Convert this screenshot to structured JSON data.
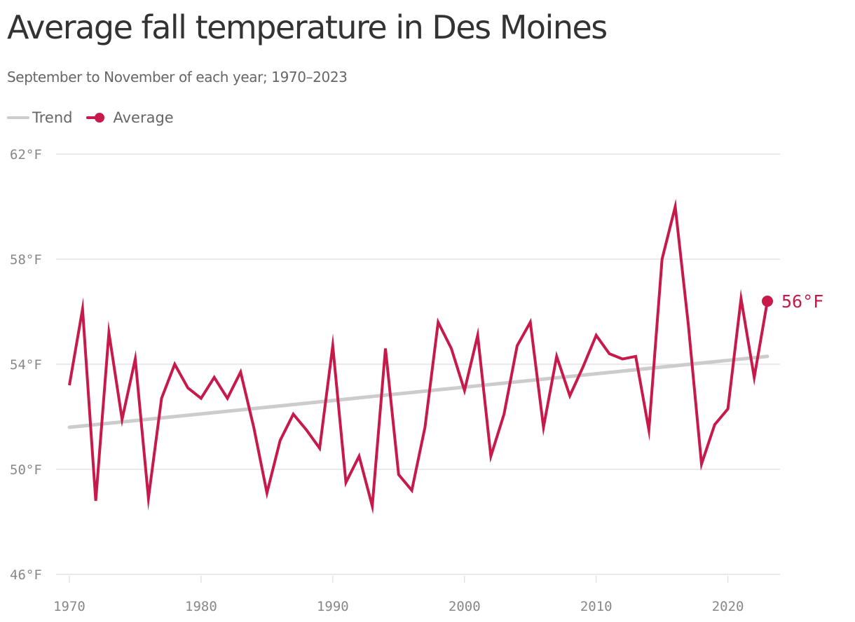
{
  "chart_data": {
    "type": "line",
    "title": "Average fall temperature in Des Moines",
    "subtitle": "September to November of each year; 1970–2023",
    "legend": [
      "Trend",
      "Average"
    ],
    "legend_placement": "top-left",
    "xlabel": "",
    "ylabel": "",
    "xlim": [
      1970,
      2023
    ],
    "ylim": [
      46,
      62
    ],
    "x_ticks": [
      1970,
      1980,
      1990,
      2000,
      2010,
      2020
    ],
    "y_ticks": [
      62,
      58,
      54,
      50,
      46
    ],
    "y_tick_labels": [
      "62°F",
      "58°F",
      "54°F",
      "50°F",
      "46°F"
    ],
    "grid": "horizontal",
    "end_label": "56°F",
    "colors": {
      "average": "#c8194b",
      "trend": "#cccccc",
      "grid": "#dddddd"
    },
    "series": [
      {
        "name": "Average",
        "x": [
          1970,
          1971,
          1972,
          1973,
          1974,
          1975,
          1976,
          1977,
          1978,
          1979,
          1980,
          1981,
          1982,
          1983,
          1984,
          1985,
          1986,
          1987,
          1988,
          1989,
          1990,
          1991,
          1992,
          1993,
          1994,
          1995,
          1996,
          1997,
          1998,
          1999,
          2000,
          2001,
          2002,
          2003,
          2004,
          2005,
          2006,
          2007,
          2008,
          2009,
          2010,
          2011,
          2012,
          2013,
          2014,
          2015,
          2016,
          2017,
          2018,
          2019,
          2020,
          2021,
          2022,
          2023
        ],
        "values": [
          53.2,
          56.1,
          48.8,
          55.2,
          51.9,
          54.2,
          48.9,
          52.7,
          54.0,
          53.1,
          52.7,
          53.5,
          52.7,
          53.7,
          51.6,
          49.1,
          51.1,
          52.1,
          51.5,
          50.8,
          54.7,
          49.5,
          50.5,
          48.6,
          54.6,
          49.8,
          49.2,
          51.6,
          55.6,
          54.6,
          53.0,
          55.1,
          50.5,
          52.1,
          54.7,
          55.6,
          51.6,
          54.3,
          52.8,
          53.9,
          55.1,
          54.4,
          54.2,
          54.3,
          51.5,
          58.0,
          60.0,
          55.5,
          50.2,
          51.7,
          52.3,
          56.5,
          53.5,
          56.4
        ]
      },
      {
        "name": "Trend",
        "x": [
          1970,
          2023
        ],
        "values": [
          51.6,
          54.3
        ]
      }
    ]
  }
}
